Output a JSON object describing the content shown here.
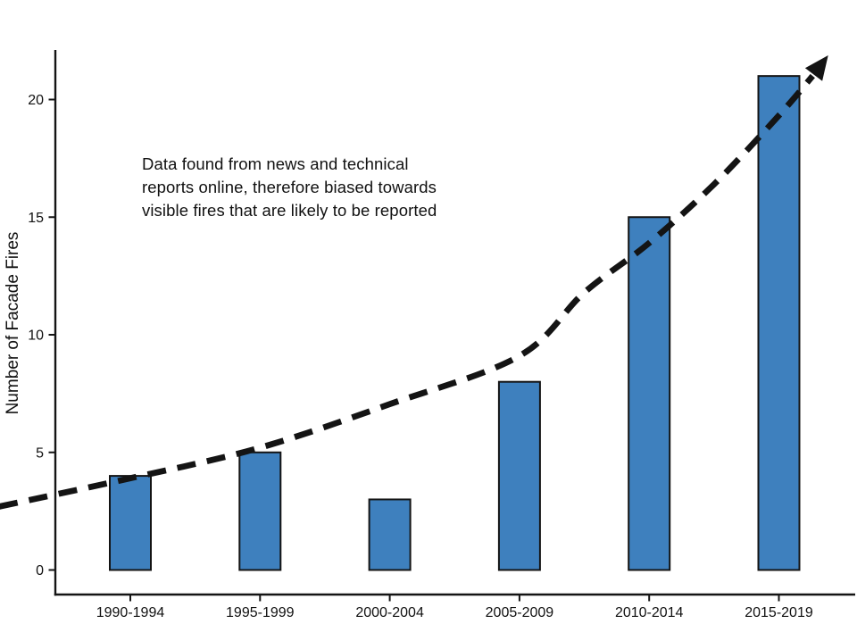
{
  "chart_data": {
    "type": "bar",
    "title": "",
    "xlabel": "",
    "ylabel": "Number of Facade Fires",
    "categories": [
      "1990-1994",
      "1995-1999",
      "2000-2004",
      "2005-2009",
      "2010-2014",
      "2015-2019"
    ],
    "values": [
      4,
      5,
      3,
      8,
      15,
      21
    ],
    "yticks": [
      0,
      5,
      10,
      15,
      20
    ],
    "ylim": [
      -1,
      22
    ],
    "grid": false,
    "legend": null,
    "bar_color": "#3e80be",
    "bar_edge_color": "#141414",
    "axis_color": "#141414",
    "annotation": "Data found from news and technical reports online, therefore biased towards visible fires that are likely to be reported",
    "annotation_lines": [
      "Data found from news and technical",
      "reports online, therefore biased towards",
      "visible fires that are likely to be reported"
    ],
    "trend_arrow": {
      "style": "dashed",
      "color": "#141414",
      "description": "exponential upward trend line ending in arrowhead",
      "points": [
        {
          "x_index": -1.01,
          "value": 2.7
        },
        {
          "x_index": 0,
          "value": 3.9
        },
        {
          "x_index": 1,
          "value": 5.2
        },
        {
          "x_index": 2,
          "value": 7.05
        },
        {
          "x_index": 3,
          "value": 9.1
        },
        {
          "x_index": 3.5,
          "value": 11.8
        },
        {
          "x_index": 4,
          "value": 13.9
        },
        {
          "x_index": 4.5,
          "value": 16.4
        },
        {
          "x_index": 4.98,
          "value": 19.2
        },
        {
          "x_index": 5.26,
          "value": 21.0
        }
      ],
      "tip": {
        "x_index": 5.38,
        "value": 21.88
      }
    }
  }
}
